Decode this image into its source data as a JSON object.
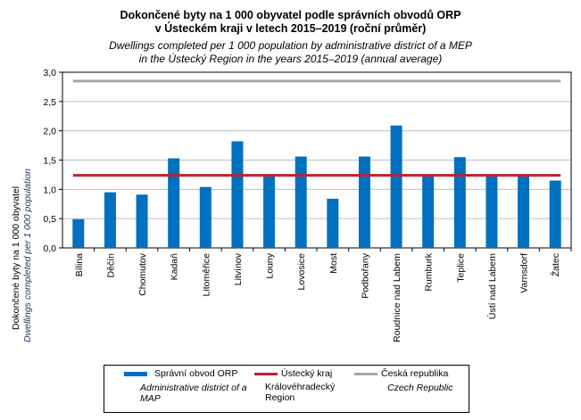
{
  "chart_data": {
    "type": "bar",
    "title": "Dokončené byty na 1 000 obyvatel podle správních obvodů ORP",
    "title_line2": "v Ústeckém kraji v letech 2015–2019 (roční průměr)",
    "subtitle": "Dwellings completed per 1 000 population by administrative district of a MEP",
    "subtitle_line2": "in the Ústecký Region in the years 2015–2019 (annual average)",
    "ylabel": "Dokončené byty na 1 000 obyvatel",
    "ylabel_en": "Dwellings completed per 1 000 population",
    "ylim": [
      0,
      3
    ],
    "yticks": [
      "0,0",
      "0,5",
      "1,0",
      "1,5",
      "2,0",
      "2,5",
      "3,0"
    ],
    "grid": true,
    "categories": [
      "Bílina",
      "Děčín",
      "Chomutov",
      "Kadaň",
      "Litoměřice",
      "Litvínov",
      "Louny",
      "Lovosice",
      "Most",
      "Podbořany",
      "Roudnice nad Labem",
      "Rumburk",
      "Teplice",
      "Ústí nad Labem",
      "Varnsdorf",
      "Žatec"
    ],
    "series": [
      {
        "name": "Správní obvod ORP",
        "name_en": "Administrative district of a MAP",
        "color": "#0070C0",
        "values": [
          0.49,
          0.95,
          0.91,
          1.53,
          1.04,
          1.82,
          1.24,
          1.56,
          0.84,
          1.56,
          2.09,
          1.24,
          1.55,
          1.24,
          1.24,
          1.15
        ]
      },
      {
        "name": "Ústecký kraj",
        "name_en": "Královéhradecký Region",
        "color": "#C0202A",
        "value": 1.24
      },
      {
        "name": "Česká republika",
        "name_en": "Czech Republic",
        "color": "#A6A6A6",
        "value": 2.85
      }
    ],
    "legend_position": "bottom"
  }
}
